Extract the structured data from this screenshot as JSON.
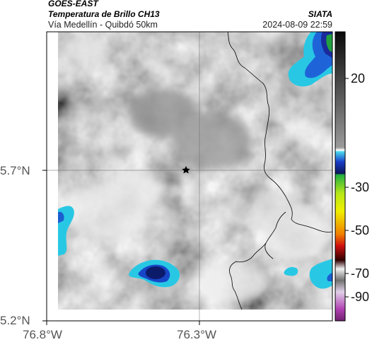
{
  "header": {
    "satellite": "GOES-EAST",
    "product": "Temperatura de Brillo CH13",
    "region": "Vía Medellín - Quibdó 50km",
    "agency": "SIATA",
    "datetime": "2024-08-09 22:59"
  },
  "axes": {
    "lat_ticks": [
      "5.7°N",
      "5.2°N"
    ],
    "lon_ticks": [
      "76.8°W",
      "76.3°W"
    ]
  },
  "colorbar": {
    "tick_labels": [
      "20",
      "-30",
      "-50",
      "-70",
      "-90"
    ],
    "tick_values": [
      20,
      -30,
      -50,
      -70,
      -90
    ],
    "range": [
      -95,
      40
    ]
  },
  "marker": {
    "icon": "star-icon"
  },
  "colors": {
    "cold_cyan": "#1ec8e6",
    "deep_blue": "#0a1e6e",
    "green": "#1ea03c",
    "boundary": "#000000"
  }
}
